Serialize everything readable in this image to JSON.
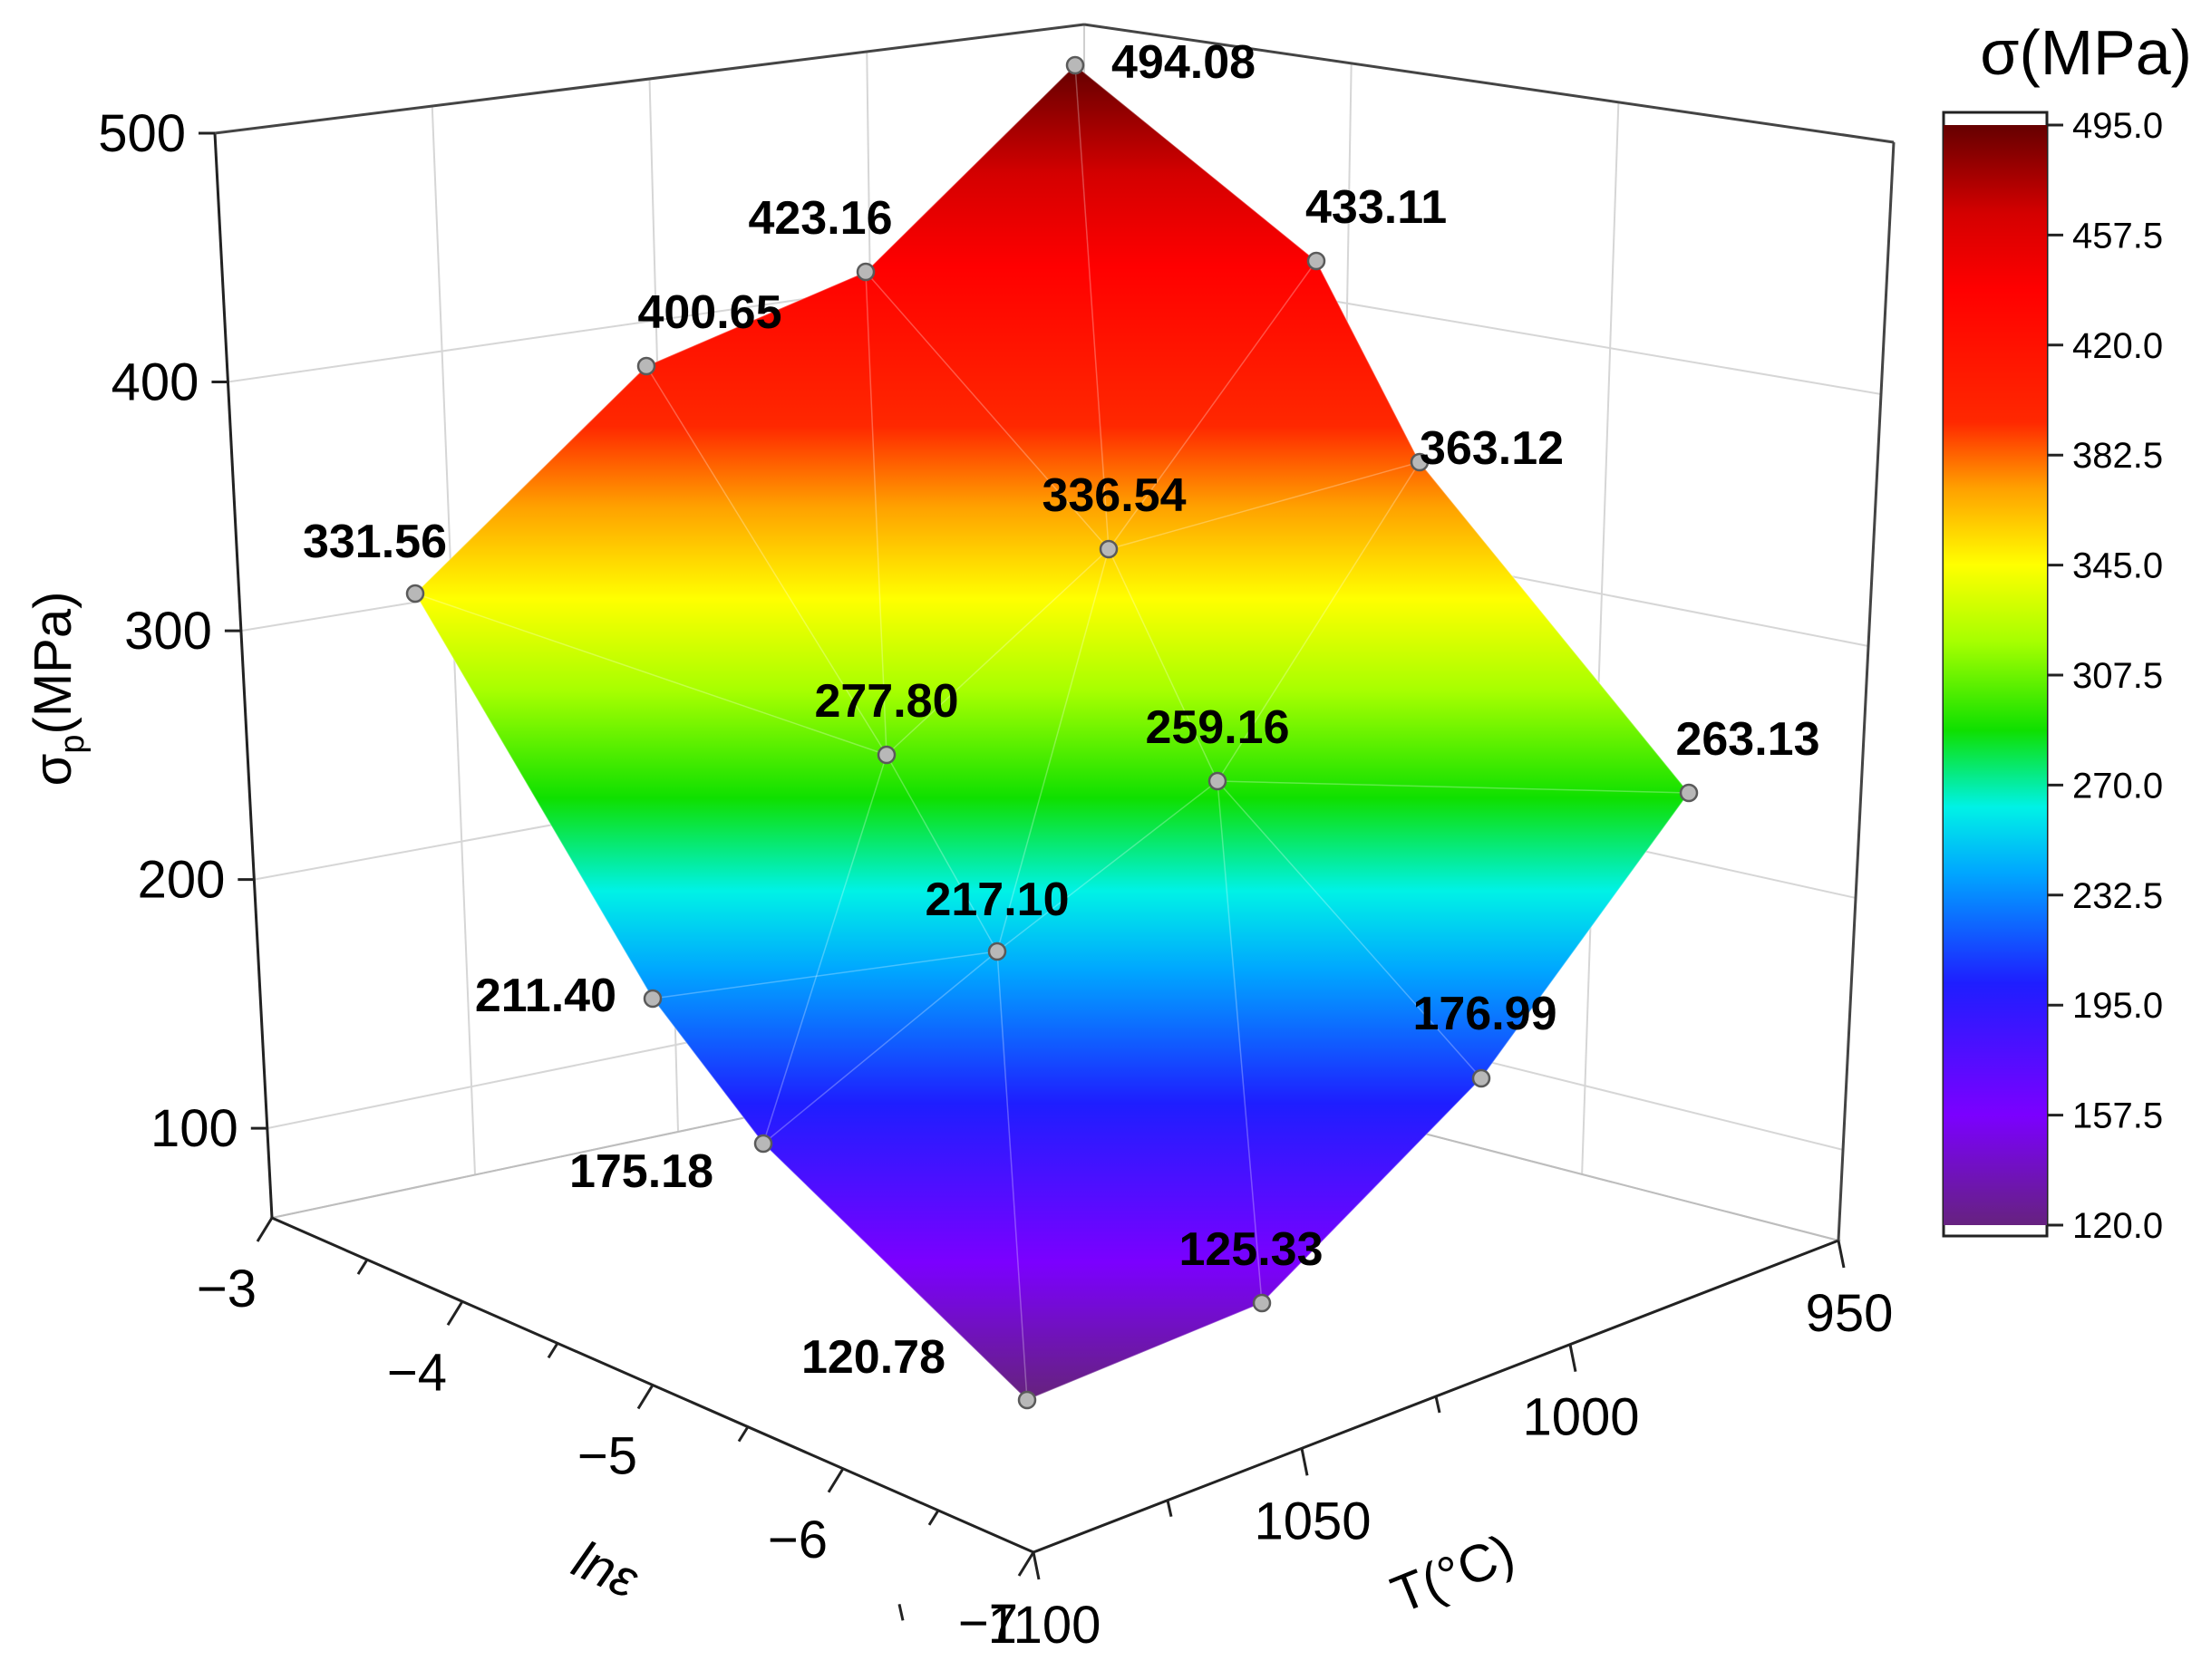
{
  "chart_data": {
    "type": "surface",
    "z_axis": {
      "title_main": "σ",
      "title_sub": "p",
      "title_unit": "(MPa)",
      "ticks": [
        "100",
        "200",
        "300",
        "400",
        "500"
      ],
      "range": [
        100,
        500
      ]
    },
    "x_axis": {
      "title": "lnε",
      "ticks": [
        "−3",
        "−4",
        "−5",
        "−6",
        "−7"
      ],
      "range": [
        -7,
        -3
      ]
    },
    "y_axis": {
      "title": "T(°C)",
      "ticks": [
        "950",
        "1000",
        "1050",
        "1100"
      ],
      "range": [
        950,
        1100
      ]
    },
    "colorbar": {
      "title": "σ(MPa)",
      "ticks": [
        "495.0",
        "457.5",
        "420.0",
        "382.5",
        "345.0",
        "307.5",
        "270.0",
        "232.5",
        "195.0",
        "157.5",
        "120.0"
      ],
      "range": [
        120,
        495
      ]
    },
    "grid": true,
    "points": [
      {
        "lne": -7,
        "T": 1100,
        "sigma": 120.78,
        "label": "120.78"
      },
      {
        "lne": -6,
        "T": 1100,
        "sigma": 175.18,
        "label": "175.18"
      },
      {
        "lne": -5,
        "T": 1100,
        "sigma": 211.4,
        "label": "211.40"
      },
      {
        "lne": -4,
        "T": 1100,
        "sigma": 331.56,
        "label": "331.56"
      },
      {
        "lne": -3,
        "T": 1100,
        "sigma": 400.65,
        "label": "400.65"
      },
      {
        "lne": -7,
        "T": 1050,
        "sigma": 217.1,
        "label": "217.10"
      },
      {
        "lne": -5,
        "T": 1050,
        "sigma": 277.8,
        "label": "277.80"
      },
      {
        "lne": -4,
        "T": 1050,
        "sigma": 423.16,
        "label": "423.16"
      },
      {
        "lne": -6,
        "T": 1000,
        "sigma": 125.33,
        "label": "125.33"
      },
      {
        "lne": -5,
        "T": 1000,
        "sigma": 259.16,
        "label": "259.16"
      },
      {
        "lne": -4,
        "T": 1000,
        "sigma": 336.54,
        "label": "336.54"
      },
      {
        "lne": -3,
        "T": 1000,
        "sigma": 494.08,
        "label": "494.08"
      },
      {
        "lne": -6,
        "T": 950,
        "sigma": 176.99,
        "label": "176.99"
      },
      {
        "lne": -5,
        "T": 950,
        "sigma": 263.13,
        "label": "263.13"
      },
      {
        "lne": -4,
        "T": 950,
        "sigma": 363.12,
        "label": "363.12"
      },
      {
        "lne": -3,
        "T": 950,
        "sigma": 433.11,
        "label": "433.11"
      }
    ],
    "colors": {
      "stops": [
        "#6a1a8a",
        "#7a00ff",
        "#2020ff",
        "#00a0ff",
        "#00f0e0",
        "#10e000",
        "#9cff00",
        "#ffff00",
        "#ffa000",
        "#ff2a00",
        "#ff0000",
        "#d00000",
        "#660000"
      ],
      "marker_fill": "#b8b8b8",
      "marker_stroke": "#5a5a5a",
      "grid": "#d6d6d6"
    }
  }
}
